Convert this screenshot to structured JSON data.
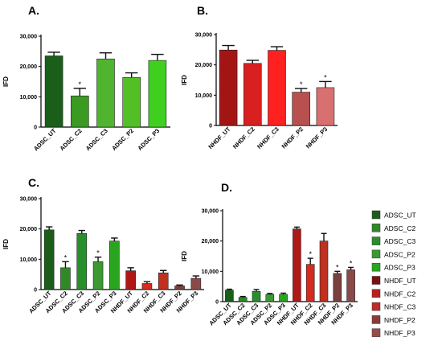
{
  "figure": {
    "panels": [
      "A.",
      "B.",
      "C.",
      "D."
    ]
  },
  "chart_data": [
    {
      "type": "bar",
      "panel": "A.",
      "ylabel": "IFD",
      "ylim": [
        0,
        30000
      ],
      "yticks": [
        "0",
        "10,000",
        "20,000",
        "30,000"
      ],
      "categories": [
        "ADSC_UT",
        "ADSC_C2",
        "ADSC_C3",
        "ADSC_P2",
        "ADSC_P3"
      ],
      "values": [
        23500,
        10300,
        22500,
        16400,
        22000
      ],
      "errors": [
        1200,
        2500,
        2000,
        1500,
        2000
      ],
      "significant": [
        false,
        true,
        false,
        false,
        false
      ],
      "colors": [
        "#1a5e1a",
        "#3a9a22",
        "#4fb52e",
        "#52c024",
        "#3fd01f"
      ]
    },
    {
      "type": "bar",
      "panel": "B.",
      "ylabel": "IFD",
      "ylim": [
        0,
        30000
      ],
      "yticks": [
        "0",
        "10,000",
        "20,000",
        "30,000"
      ],
      "categories": [
        "NHDF_UT",
        "NHDF_C2",
        "NHDF_C3",
        "NHDF_P2",
        "NHDF_P3"
      ],
      "values": [
        24900,
        20500,
        24800,
        11000,
        12500
      ],
      "errors": [
        1500,
        1000,
        1200,
        1200,
        2000
      ],
      "significant": [
        false,
        false,
        false,
        true,
        true
      ],
      "colors": [
        "#a31515",
        "#d92020",
        "#ff2020",
        "#b85050",
        "#d97070"
      ]
    },
    {
      "type": "bar",
      "panel": "C.",
      "ylabel": "IFD",
      "ylim": [
        0,
        30000
      ],
      "yticks": [
        "0",
        "10,000",
        "20,000",
        "30,000"
      ],
      "categories": [
        "ADSC_UT",
        "ADSC_C2",
        "ADSC_C3",
        "ADSC_P2",
        "ADSC_P3",
        "NHDF_UT",
        "NHDF_C2",
        "NHDF_C3",
        "NHDF_P2",
        "NHDF_P3"
      ],
      "values": [
        19700,
        7200,
        18500,
        9200,
        16000,
        6200,
        2000,
        5500,
        1200,
        3700
      ],
      "errors": [
        1000,
        2000,
        1000,
        1500,
        1000,
        1000,
        600,
        800,
        300,
        800
      ],
      "significant": [
        false,
        true,
        false,
        true,
        false,
        false,
        false,
        false,
        false,
        false
      ],
      "colors": [
        "#1a5e1a",
        "#2f8a25",
        "#27902a",
        "#3a9a30",
        "#2aa520",
        "#b01818",
        "#d62a1e",
        "#c0301f",
        "#7a4040",
        "#8a4a4a"
      ]
    },
    {
      "type": "bar",
      "panel": "D.",
      "ylabel": "IFD",
      "ylim": [
        0,
        30000
      ],
      "yticks": [
        "0",
        "10,000",
        "20,000",
        "30,000"
      ],
      "categories": [
        "ADSC_UT",
        "ADSC_C2",
        "ADSC_C3",
        "ADSC_P2",
        "ADSC_P3",
        "NHDF_UT",
        "NHDF_C2",
        "NHDF_C3",
        "NHDF_P2",
        "NHDF_P3"
      ],
      "values": [
        3800,
        1400,
        3400,
        2400,
        2400,
        24000,
        12300,
        20000,
        9300,
        10500
      ],
      "errors": [
        300,
        300,
        600,
        300,
        400,
        600,
        2000,
        2500,
        700,
        800
      ],
      "significant": [
        false,
        false,
        false,
        false,
        false,
        false,
        true,
        false,
        true,
        true
      ],
      "colors": [
        "#1a5e1a",
        "#2f8a25",
        "#27902a",
        "#3a9a30",
        "#2aa520",
        "#b01818",
        "#d62a1e",
        "#c0301f",
        "#7a4040",
        "#8a4a4a"
      ]
    }
  ],
  "legend": {
    "entries": [
      {
        "label": "ADSC_UT",
        "color": "#1a5e1a"
      },
      {
        "label": "ADSC_C2",
        "color": "#2f8a25"
      },
      {
        "label": "ADSC_C3",
        "color": "#27902a"
      },
      {
        "label": "ADSC_P2",
        "color": "#3a9a30"
      },
      {
        "label": "ADSC_P3",
        "color": "#2aa520"
      },
      {
        "label": "NHDF_UT",
        "color": "#7a1010"
      },
      {
        "label": "NHDF_C2",
        "color": "#b82020"
      },
      {
        "label": "NHDF_C3",
        "color": "#c02a2a"
      },
      {
        "label": "NHDF_P2",
        "color": "#8a3a3a"
      },
      {
        "label": "NHDF_P3",
        "color": "#9a4a4a"
      }
    ]
  },
  "significance_mark": "*"
}
